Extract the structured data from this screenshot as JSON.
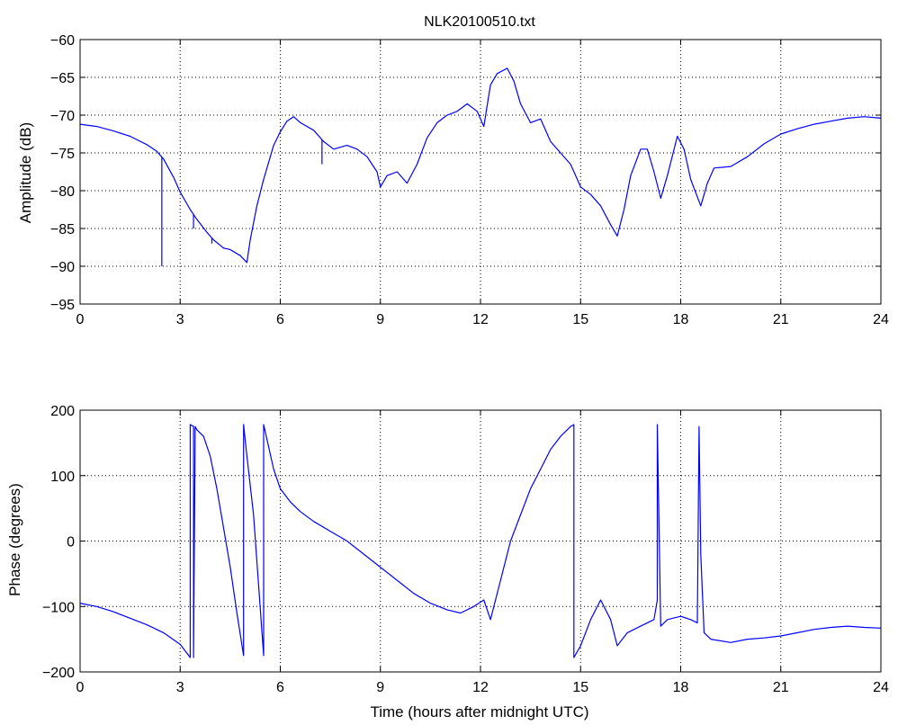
{
  "chart_data": [
    {
      "type": "line",
      "title": "NLK20100510.txt",
      "xlabel": "",
      "ylabel": "Amplitude (dB)",
      "xlim": [
        0,
        24
      ],
      "ylim": [
        -95,
        -60
      ],
      "grid": true,
      "x_ticks": [
        "0",
        "3",
        "6",
        "9",
        "12",
        "15",
        "18",
        "21",
        "24"
      ],
      "y_ticks": [
        "-95",
        "-90",
        "-85",
        "-80",
        "-75",
        "-70",
        "-65",
        "-60"
      ],
      "series": [
        {
          "color": "#0000ff",
          "x": [
            0,
            0.5,
            1,
            1.5,
            2,
            2.3,
            2.5,
            2.8,
            3,
            3.3,
            3.5,
            3.8,
            4,
            4.3,
            4.5,
            4.8,
            5,
            5.1,
            5.3,
            5.5,
            5.8,
            6,
            6.2,
            6.4,
            6.6,
            7,
            7.3,
            7.6,
            8,
            8.3,
            8.6,
            8.9,
            9,
            9.2,
            9.5,
            9.8,
            10.1,
            10.4,
            10.7,
            11,
            11.3,
            11.6,
            11.9,
            12.1,
            12.3,
            12.5,
            12.8,
            13,
            13.2,
            13.5,
            13.8,
            14.1,
            14.4,
            14.7,
            15,
            15.3,
            15.6,
            15.9,
            16.1,
            16.3,
            16.5,
            16.8,
            17,
            17.2,
            17.4,
            17.6,
            17.9,
            18.1,
            18.3,
            18.6,
            18.8,
            19,
            19.5,
            20,
            20.5,
            21,
            21.5,
            22,
            22.5,
            23,
            23.5,
            24
          ],
          "values": [
            -71.2,
            -71.5,
            -72.1,
            -72.8,
            -73.9,
            -74.8,
            -75.8,
            -78.2,
            -80.2,
            -82.5,
            -83.8,
            -85.5,
            -86.5,
            -87.6,
            -87.8,
            -88.6,
            -89.5,
            -86.5,
            -82.0,
            -78.5,
            -74.0,
            -72.2,
            -70.8,
            -70.2,
            -71.0,
            -72.0,
            -73.5,
            -74.5,
            -74.0,
            -74.5,
            -75.5,
            -77.5,
            -79.5,
            -78.0,
            -77.5,
            -79.0,
            -76.5,
            -73.0,
            -71.0,
            -70.0,
            -69.5,
            -68.5,
            -69.5,
            -71.5,
            -66.0,
            -64.5,
            -63.8,
            -65.5,
            -68.5,
            -71.0,
            -70.5,
            -73.5,
            -75.0,
            -76.5,
            -79.5,
            -80.5,
            -82.0,
            -84.5,
            -86.0,
            -82.5,
            -78.0,
            -74.5,
            -74.5,
            -77.5,
            -81.0,
            -78.0,
            -72.8,
            -74.5,
            -78.5,
            -82.0,
            -79.0,
            -77.0,
            -76.8,
            -75.5,
            -73.8,
            -72.5,
            -71.8,
            -71.2,
            -70.8,
            -70.4,
            -70.2,
            -70.4
          ]
        }
      ],
      "spikes": [
        {
          "x": 2.45,
          "min": -90.0
        },
        {
          "x": 3.4,
          "min": -85.0
        },
        {
          "x": 3.95,
          "min": -87.0
        },
        {
          "x": 4.3,
          "min": -87.5
        },
        {
          "x": 4.55,
          "min": -88.0
        },
        {
          "x": 4.8,
          "min": -88.5
        },
        {
          "x": 7.25,
          "min": -76.5
        }
      ]
    },
    {
      "type": "line",
      "title": "",
      "xlabel": "Time (hours after midnight UTC)",
      "ylabel": "Phase (degrees)",
      "xlim": [
        0,
        24
      ],
      "ylim": [
        -200,
        200
      ],
      "grid": true,
      "x_ticks": [
        "0",
        "3",
        "6",
        "9",
        "12",
        "15",
        "18",
        "21",
        "24"
      ],
      "y_ticks": [
        "-200",
        "-100",
        "0",
        "100",
        "200"
      ],
      "series": [
        {
          "color": "#0000ff",
          "x": [
            0,
            0.5,
            1,
            1.5,
            2,
            2.5,
            3.0,
            3.3,
            3.3,
            3.4,
            3.4,
            3.45,
            3.5,
            3.7,
            3.9,
            4.1,
            4.3,
            4.5,
            4.7,
            4.9,
            4.9,
            5.0,
            5.2,
            5.5,
            5.5,
            5.8,
            6.0,
            6.3,
            6.6,
            7.0,
            7.5,
            8.0,
            8.5,
            9.0,
            9.5,
            10.0,
            10.5,
            11.0,
            11.4,
            11.8,
            12.1,
            12.3,
            12.6,
            12.9,
            13.2,
            13.5,
            13.8,
            14.1,
            14.4,
            14.7,
            14.8,
            14.8,
            15.0,
            15.3,
            15.6,
            15.9,
            16.1,
            16.4,
            16.8,
            17.2,
            17.3,
            17.3,
            17.4,
            17.6,
            18.0,
            18.3,
            18.5,
            18.55,
            18.6,
            18.7,
            18.9,
            19.5,
            20,
            20.5,
            21,
            21.5,
            22,
            22.5,
            23,
            23.5,
            24
          ],
          "values": [
            -95,
            -100,
            -108,
            -118,
            -128,
            -140,
            -158,
            -178,
            178,
            175,
            -178,
            175,
            170,
            160,
            130,
            80,
            20,
            -40,
            -110,
            -175,
            178,
            130,
            40,
            -175,
            178,
            110,
            80,
            60,
            45,
            30,
            15,
            0,
            -20,
            -40,
            -60,
            -80,
            -95,
            -105,
            -110,
            -100,
            -90,
            -120,
            -60,
            0,
            40,
            80,
            110,
            140,
            160,
            175,
            178,
            -178,
            -160,
            -120,
            -90,
            -120,
            -160,
            -140,
            -130,
            -120,
            -90,
            178,
            -130,
            -120,
            -115,
            -120,
            -125,
            175,
            -20,
            -140,
            -150,
            -155,
            -150,
            -148,
            -145,
            -140,
            -135,
            -132,
            -130,
            -132,
            -133
          ]
        }
      ],
      "spikes": []
    }
  ]
}
